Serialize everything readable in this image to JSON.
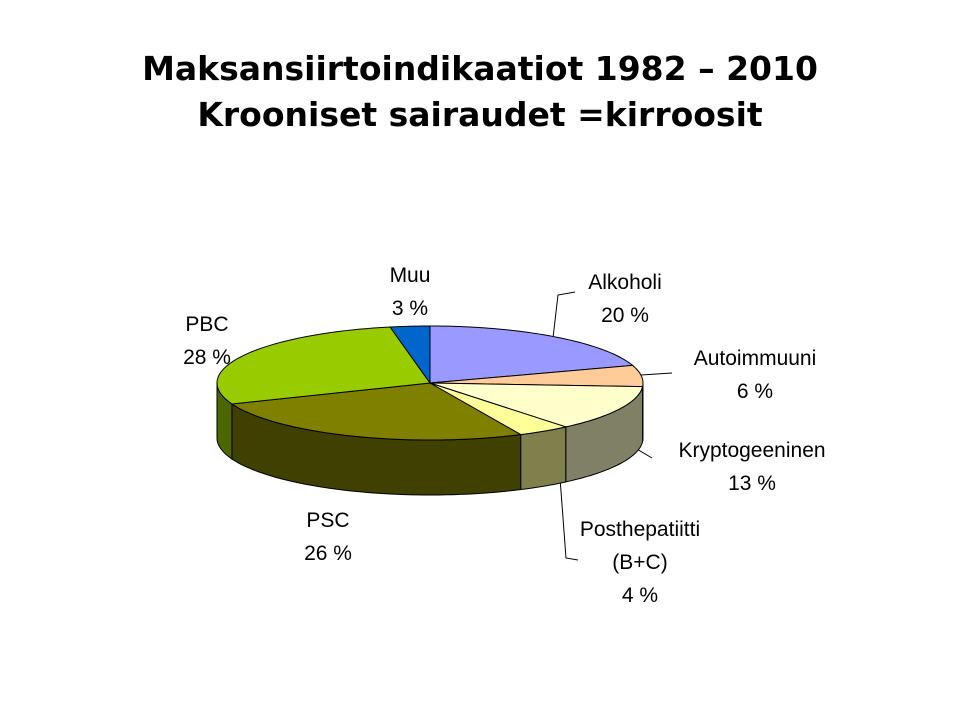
{
  "chart_data": {
    "type": "pie3d",
    "title": "Maksansiirtoindikaatiot 1982 – 2010",
    "subtitle": "Krooniset sairaudet =kirroosit",
    "categories": [
      "Alkoholi",
      "Autoimmuuni",
      "Kryptogeeninen",
      "Posthepatiitti (B+C)",
      "PSC",
      "PBC",
      "Muu"
    ],
    "values": [
      20,
      6,
      13,
      4,
      26,
      28,
      3
    ],
    "value_labels": [
      "20 %",
      "6 %",
      "13 %",
      "4 %",
      "26 %",
      "28 %",
      "3 %"
    ],
    "colors": [
      "#9999ff",
      "#ffcc99",
      "#ffffcc",
      "#ffff99",
      "#808000",
      "#99cc00",
      "#0066cc"
    ]
  }
}
